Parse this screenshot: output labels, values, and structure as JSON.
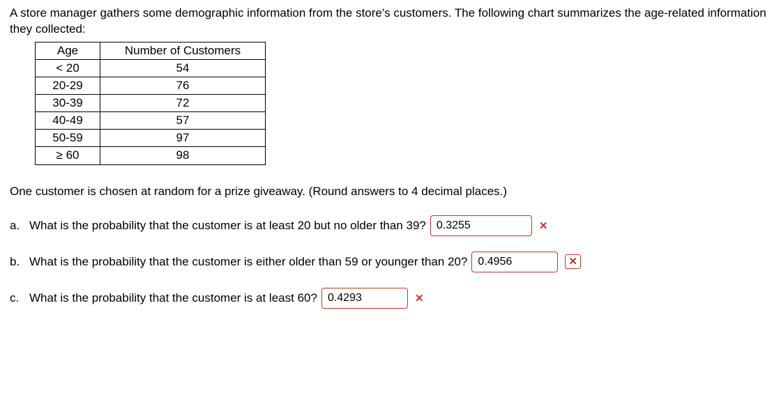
{
  "intro": "A store manager gathers some demographic information from the store's customers. The following chart summarizes the age-related information they collected:",
  "table": {
    "headers": {
      "age": "Age",
      "num": "Number of Customers"
    },
    "rows": [
      {
        "age": "< 20",
        "num": "54"
      },
      {
        "age": "20-29",
        "num": "76"
      },
      {
        "age": "30-39",
        "num": "72"
      },
      {
        "age": "40-49",
        "num": "57"
      },
      {
        "age": "50-59",
        "num": "97"
      },
      {
        "age": "≥ 60",
        "num": "98"
      }
    ]
  },
  "context": "One customer is chosen at random for a prize giveaway. (Round answers to 4 decimal places.)",
  "questions": {
    "a": {
      "label": "a.",
      "text": "What is the probability that the customer is at least 20 but no older than 39?",
      "answer": "0.3255",
      "mark": "✕"
    },
    "b": {
      "label": "b.",
      "text": "What is the probability that the customer is either older than 59 or younger than 20?",
      "answer": "0.4956",
      "mark": "✕"
    },
    "c": {
      "label": "c.",
      "text": "What is the probability that the customer is at least 60?",
      "answer": "0.4293",
      "mark": "✕"
    }
  },
  "colors": {
    "wrong": "#c9302c",
    "text": "#000000",
    "bg": "#ffffff"
  }
}
